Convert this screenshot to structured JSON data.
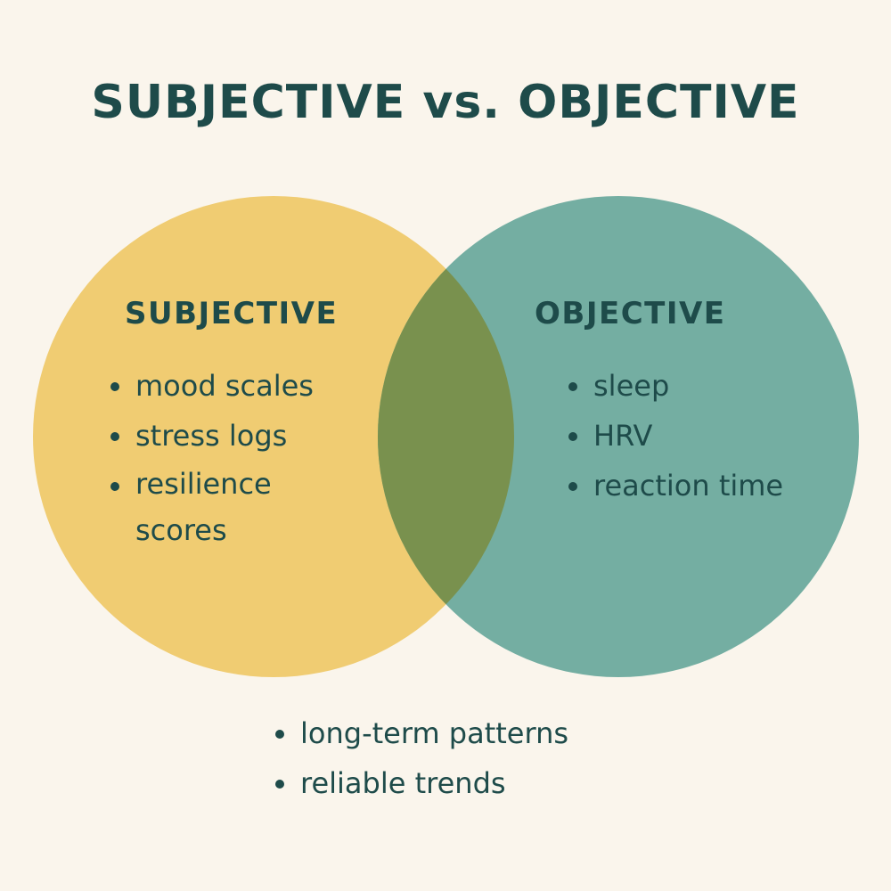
{
  "title": "SUBJECTIVE vs. OBJECTIVE",
  "colors": {
    "background": "#faf5ec",
    "subjective": "#f0cc72",
    "objective": "#74aea2",
    "overlap": "#79914e",
    "text": "#1e4b4a"
  },
  "subjective": {
    "label": "SUBJECTIVE",
    "items": [
      "mood scales",
      "stress logs",
      "resilience scores"
    ]
  },
  "objective": {
    "label": "OBJECTIVE",
    "items": [
      "sleep",
      "HRV",
      "reaction time"
    ]
  },
  "shared": {
    "items": [
      "long-term patterns",
      "reliable trends"
    ]
  }
}
